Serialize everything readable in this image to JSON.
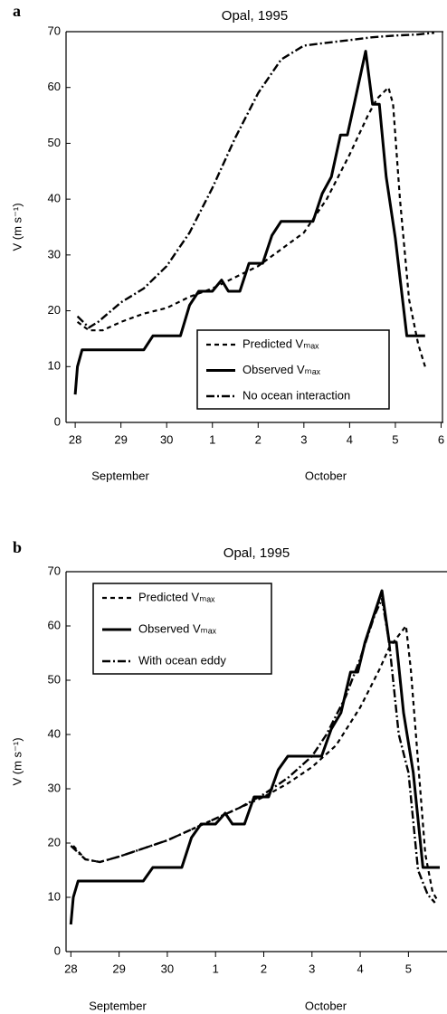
{
  "chart_data": [
    {
      "type": "line",
      "panel_label": "a",
      "title": "Opal, 1995",
      "y_label": "V (m s⁻¹)",
      "x_group_labels": [
        "September",
        "October"
      ],
      "xlim": [
        -0.2,
        8.05
      ],
      "ylim": [
        0,
        70
      ],
      "xticks": [
        {
          "value": 0,
          "label": "28"
        },
        {
          "value": 1,
          "label": "29"
        },
        {
          "value": 2,
          "label": "30"
        },
        {
          "value": 3,
          "label": "1"
        },
        {
          "value": 4,
          "label": "2"
        },
        {
          "value": 5,
          "label": "3"
        },
        {
          "value": 6,
          "label": "4"
        },
        {
          "value": 7,
          "label": "5"
        },
        {
          "value": 8,
          "label": "6"
        }
      ],
      "yticks": [
        0,
        10,
        20,
        30,
        40,
        50,
        60,
        70
      ],
      "legend": "lower right",
      "series": [
        {
          "name": "Predicted Vₘₐₓ",
          "color": "#000000",
          "dash": "dashed",
          "x": [
            0.05,
            0.3,
            0.6,
            1.0,
            1.5,
            2.0,
            2.5,
            3.0,
            3.5,
            4.0,
            4.5,
            5.0,
            5.5,
            6.0,
            6.4,
            6.6,
            6.85,
            6.95,
            7.1,
            7.3,
            7.5,
            7.65
          ],
          "values": [
            18,
            16.5,
            16.5,
            18,
            19.5,
            20.5,
            22.5,
            24,
            26,
            28,
            31,
            34,
            40,
            48,
            55,
            58,
            60,
            57,
            40,
            22,
            14,
            10
          ]
        },
        {
          "name": "Observed Vₘₐₓ",
          "color": "#000000",
          "dash": "solid",
          "x": [
            0.0,
            0.05,
            0.15,
            1.5,
            1.7,
            2.3,
            2.5,
            2.7,
            3.0,
            3.2,
            3.35,
            3.6,
            3.8,
            4.1,
            4.3,
            4.5,
            5.2,
            5.4,
            5.6,
            5.8,
            5.95,
            6.1,
            6.35,
            6.5,
            6.65,
            6.8,
            7.0,
            7.25,
            7.65
          ],
          "values": [
            5,
            10,
            13,
            13,
            15.5,
            15.5,
            21,
            23.5,
            23.5,
            25.5,
            23.5,
            23.5,
            28.5,
            28.5,
            33.5,
            36,
            36,
            41,
            44,
            51.5,
            51.5,
            57,
            66.5,
            57,
            57,
            44,
            33,
            15.5,
            15.5
          ]
        },
        {
          "name": "No ocean interaction",
          "color": "#000000",
          "dash": "dashdot",
          "x": [
            0.05,
            0.3,
            0.5,
            1.0,
            1.5,
            2.0,
            2.5,
            3.0,
            3.5,
            4.0,
            4.5,
            5.0,
            5.5,
            6.0,
            6.5,
            7.0,
            7.5,
            7.85
          ],
          "values": [
            19,
            17,
            18,
            21.5,
            24,
            28,
            34,
            42,
            51,
            59,
            65,
            67.5,
            68,
            68.5,
            69,
            69.3,
            69.5,
            69.8
          ]
        }
      ]
    },
    {
      "type": "line",
      "panel_label": "b",
      "title": "Opal, 1995",
      "y_label": "V (m s⁻¹)",
      "x_group_labels": [
        "September",
        "October"
      ],
      "xlim": [
        -0.1,
        7.8
      ],
      "ylim": [
        0,
        70
      ],
      "xticks": [
        {
          "value": 0,
          "label": "28"
        },
        {
          "value": 1,
          "label": "29"
        },
        {
          "value": 2,
          "label": "30"
        },
        {
          "value": 3,
          "label": "1"
        },
        {
          "value": 4,
          "label": "2"
        },
        {
          "value": 5,
          "label": "3"
        },
        {
          "value": 6,
          "label": "4"
        },
        {
          "value": 7,
          "label": "5"
        }
      ],
      "yticks": [
        0,
        10,
        20,
        30,
        40,
        50,
        60,
        70
      ],
      "legend": "upper left",
      "series": [
        {
          "name": "Predicted Vₘₐₓ",
          "color": "#000000",
          "dash": "dashed",
          "x": [
            0.05,
            0.3,
            0.6,
            1.0,
            1.5,
            2.0,
            2.5,
            3.0,
            3.5,
            4.0,
            4.5,
            5.0,
            5.5,
            6.0,
            6.4,
            6.6,
            6.95,
            7.05,
            7.2,
            7.35,
            7.5,
            7.6
          ],
          "values": [
            19.5,
            17,
            16.5,
            17.5,
            19,
            20.5,
            22.5,
            24.5,
            26.5,
            28.5,
            31,
            34,
            38,
            45,
            52,
            56,
            60,
            52,
            35,
            18,
            11,
            9.5
          ]
        },
        {
          "name": "Observed Vₘₐₓ",
          "color": "#000000",
          "dash": "solid",
          "x": [
            0.0,
            0.05,
            0.15,
            1.5,
            1.7,
            2.3,
            2.5,
            2.7,
            3.0,
            3.2,
            3.35,
            3.6,
            3.8,
            4.1,
            4.3,
            4.5,
            5.2,
            5.4,
            5.6,
            5.8,
            5.95,
            6.1,
            6.45,
            6.6,
            6.75,
            6.9,
            7.1,
            7.3,
            7.65
          ],
          "values": [
            5,
            10,
            13,
            13,
            15.5,
            15.5,
            21,
            23.5,
            23.5,
            25.5,
            23.5,
            23.5,
            28.5,
            28.5,
            33.5,
            36,
            36,
            41,
            44,
            51.5,
            51.5,
            57,
            66.5,
            57,
            57,
            44,
            33,
            15.5,
            15.5
          ]
        },
        {
          "name": "With ocean eddy",
          "color": "#000000",
          "dash": "dashdot",
          "x": [
            0.0,
            0.3,
            0.6,
            1.0,
            1.5,
            2.0,
            2.5,
            3.0,
            3.5,
            4.0,
            4.5,
            5.0,
            5.3,
            5.7,
            6.0,
            6.3,
            6.45,
            6.6,
            6.8,
            7.0,
            7.2,
            7.4,
            7.55
          ],
          "values": [
            19.5,
            17,
            16.5,
            17.5,
            19,
            20.5,
            22.5,
            24.5,
            26.5,
            29,
            32,
            36,
            40,
            47,
            54,
            62,
            65,
            57,
            40,
            33,
            15,
            10.5,
            9
          ]
        }
      ]
    }
  ]
}
